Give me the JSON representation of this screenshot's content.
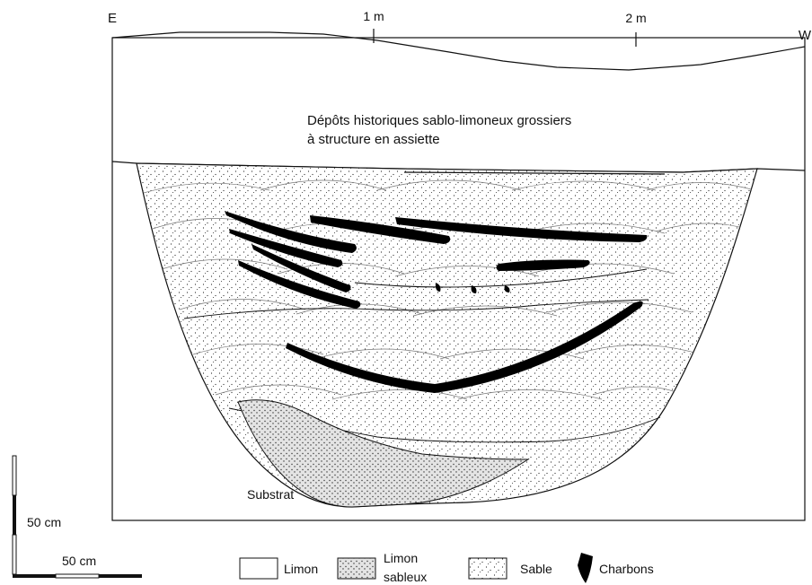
{
  "header": {
    "east_label": "E",
    "west_label": "W",
    "mark_1m": "1 m",
    "mark_2m": "2 m"
  },
  "section": {
    "upper_layer_line1": "Dépôts historiques sablo-limoneux grossiers",
    "upper_layer_line2": "à structure en assiette",
    "substrate_label": "Substrat"
  },
  "scale": {
    "vertical_label": "50 cm",
    "horizontal_label": "50 cm"
  },
  "legend": {
    "items": [
      {
        "key": "limon",
        "label": "Limon"
      },
      {
        "key": "limon_sableux",
        "label_line1": "Limon",
        "label_line2": "sableux"
      },
      {
        "key": "sable",
        "label": "Sable"
      },
      {
        "key": "charbons",
        "label": "Charbons"
      }
    ]
  },
  "colors": {
    "ink": "#111111",
    "limon_fill": "#ffffff",
    "limon_sableux_fill": "#e6e6e6",
    "sable_fill": "#ffffff"
  }
}
